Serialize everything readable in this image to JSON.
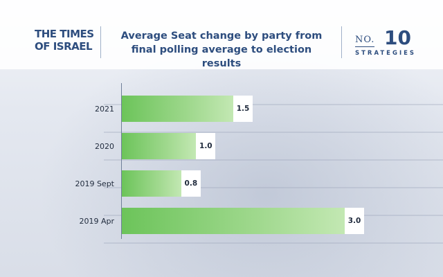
{
  "header": {
    "logo_line1": "THE TIMES",
    "logo_line2": "OF ISRAEL",
    "brand_no": "NO.",
    "brand_num": "10",
    "brand_strategies": "STRATEGIES"
  },
  "colors": {
    "title": "#2d4d7e",
    "bar_start": "#6cc45a",
    "bar_end": "#c3e8b3"
  },
  "chart_data": {
    "type": "bar",
    "orientation": "horizontal",
    "title": "Average Seat change by party from final polling average to election results",
    "categories": [
      "2021",
      "2020",
      "2019 Sept",
      "2019 Apr"
    ],
    "values": [
      1.5,
      1.0,
      0.8,
      3.0
    ],
    "value_labels": [
      "1.5",
      "1.0",
      "0.8",
      "3.0"
    ],
    "xlabel": "",
    "ylabel": "",
    "xlim": [
      0,
      3.2
    ],
    "grid": false,
    "legend": "none"
  }
}
